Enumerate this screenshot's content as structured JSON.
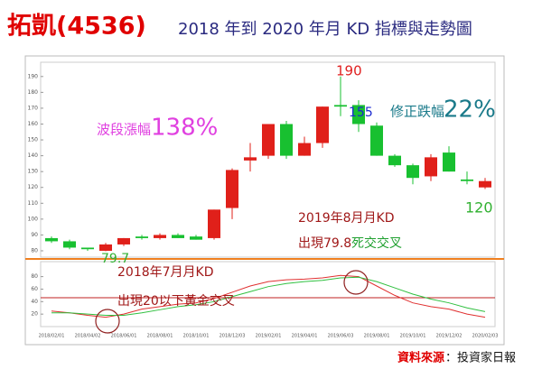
{
  "header": {
    "stock": "拓凱(4536)",
    "subtitle": "2018 年到 2020 年月 KD 指標與走勢圖"
  },
  "annotations": {
    "rise_label": "波段漲幅",
    "rise_pct": "138%",
    "fall_label": "修正跌幅",
    "fall_pct": "22%",
    "high": "190",
    "mid_low": "155",
    "low": "79.7",
    "last": "120",
    "death_line1": "2019年8月月KD",
    "death_line2a": "出現79.8",
    "death_line2b": "死交交叉",
    "gold_line1": "2018年7月月KD",
    "gold_line2": "出現20以下黃金交叉"
  },
  "source": {
    "label": "資料來源",
    "text": "：投資家日報"
  },
  "chart_data": {
    "type": "candlestick",
    "categories": [
      "2018/02/01",
      null,
      "2018/04/02",
      null,
      "2018/06/01",
      null,
      "2018/08/01",
      null,
      "2018/10/01",
      null,
      "2018/12/03",
      null,
      "2019/02/01",
      null,
      "2019/04/01",
      null,
      "2019/06/03",
      null,
      "2019/08/01",
      null,
      "2019/10/01",
      null,
      "2019/12/02",
      null,
      "2020/02/03"
    ],
    "open": [
      88,
      86,
      82,
      80,
      84,
      89,
      88,
      90,
      89,
      88,
      107,
      137,
      140,
      160,
      140,
      148,
      172,
      172,
      159,
      140,
      134,
      127,
      142,
      125,
      120
    ],
    "high": [
      89,
      87,
      82,
      85,
      88,
      90,
      91,
      91,
      90,
      106,
      132,
      148,
      160,
      162,
      152,
      171,
      190,
      175,
      161,
      141,
      135,
      141,
      146,
      130,
      126
    ],
    "low": [
      85,
      81,
      80,
      79.7,
      83,
      87,
      87,
      88,
      87,
      87,
      100,
      130,
      138,
      138,
      140,
      145,
      165,
      155,
      140,
      133,
      122,
      124,
      130,
      122,
      119
    ],
    "close": [
      86,
      82,
      81,
      84,
      88,
      88,
      90,
      88,
      87,
      106,
      131,
      139,
      160,
      140,
      148,
      171,
      171,
      160,
      140,
      134,
      126,
      139,
      130,
      124,
      124
    ],
    "up_color": "#e0201a",
    "down_color": "#18c030",
    "ylim": [
      76,
      199
    ],
    "yticks": [
      80,
      90,
      100,
      110,
      120,
      130,
      140,
      150,
      160,
      170,
      180,
      190
    ],
    "kd": {
      "ylim": [
        0,
        104
      ],
      "yticks": [
        20,
        40,
        60,
        80
      ],
      "series": [
        {
          "color": "#e03030",
          "values": [
            25,
            22,
            18,
            15,
            20,
            28,
            32,
            36,
            38,
            45,
            55,
            65,
            72,
            75,
            76,
            78,
            82,
            80,
            65,
            50,
            38,
            32,
            28,
            20,
            15
          ]
        },
        {
          "color": "#30c040",
          "values": [
            22,
            22,
            20,
            18,
            18,
            22,
            27,
            32,
            35,
            40,
            48,
            56,
            64,
            69,
            72,
            74,
            78,
            79,
            72,
            62,
            52,
            44,
            38,
            30,
            24
          ]
        }
      ]
    }
  }
}
